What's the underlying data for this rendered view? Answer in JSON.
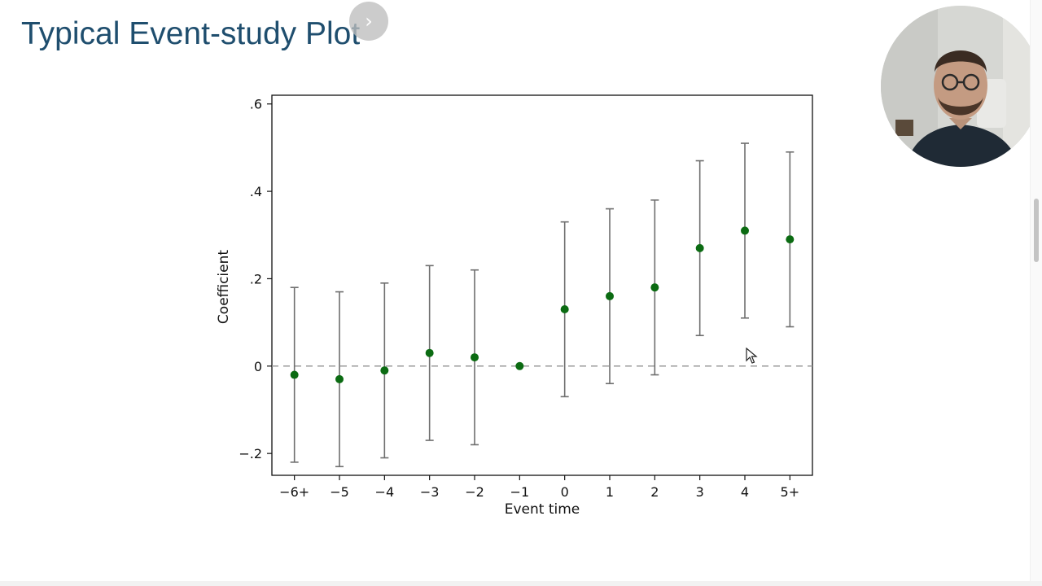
{
  "slide": {
    "title": "Typical Event-study Plot"
  },
  "controls": {
    "next_icon": "chevron-right-icon",
    "next_glyph": "›"
  },
  "webcam": {
    "icon": "presenter-video"
  },
  "colors": {
    "title": "#1f4e6e",
    "point": "#0b6b12",
    "errorbar": "#6e6e6e",
    "zero_line": "#9a9a9a"
  },
  "chart_data": {
    "type": "scatter",
    "xlabel": "Event time",
    "ylabel": "Coefficient",
    "categories": [
      "−6+",
      "−5",
      "−4",
      "−3",
      "−2",
      "−1",
      "0",
      "1",
      "2",
      "3",
      "4",
      "5+"
    ],
    "x": [
      -6,
      -5,
      -4,
      -3,
      -2,
      -1,
      0,
      1,
      2,
      3,
      4,
      5
    ],
    "series": [
      {
        "values": [
          -0.02,
          -0.03,
          -0.01,
          0.03,
          0.02,
          0.0,
          0.13,
          0.16,
          0.18,
          0.27,
          0.31,
          0.29
        ],
        "ci_low": [
          -0.22,
          -0.23,
          -0.21,
          -0.17,
          -0.18,
          0.0,
          -0.07,
          -0.04,
          -0.02,
          0.07,
          0.11,
          0.09
        ],
        "ci_high": [
          0.18,
          0.17,
          0.19,
          0.23,
          0.22,
          0.0,
          0.33,
          0.36,
          0.38,
          0.47,
          0.51,
          0.49
        ],
        "error_bars": [
          true,
          true,
          true,
          true,
          true,
          false,
          true,
          true,
          true,
          true,
          true,
          true
        ]
      }
    ],
    "yticks": [
      -0.2,
      0,
      0.2,
      0.4,
      0.6
    ],
    "ytick_labels": [
      "−.2",
      "0",
      ".2",
      ".4",
      ".6"
    ],
    "xlim": [
      -6.5,
      5.5
    ],
    "ylim": [
      -0.25,
      0.62
    ],
    "reference_line": {
      "y": 0,
      "style": "dashed"
    },
    "grid": false,
    "legend": "none"
  }
}
